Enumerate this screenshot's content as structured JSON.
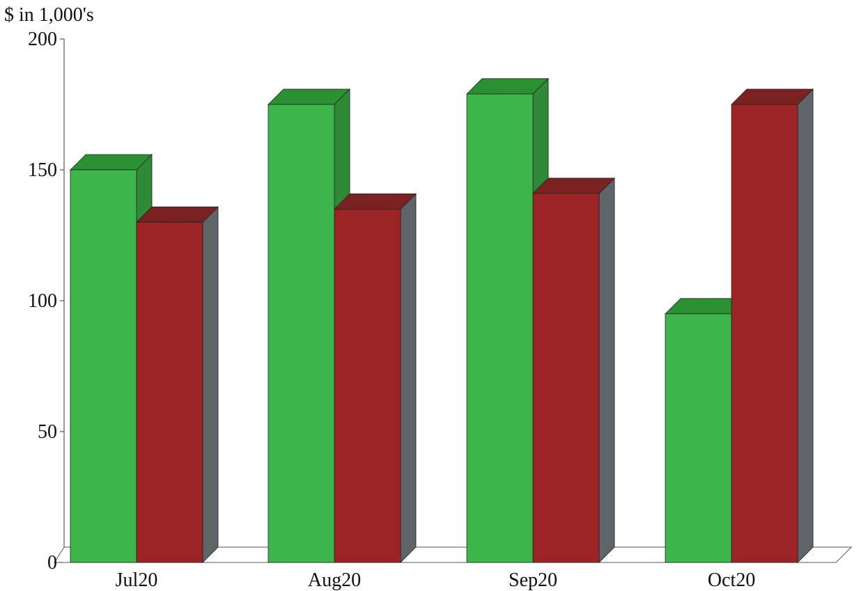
{
  "chart_data": {
    "type": "bar",
    "title": "",
    "ylabel": "$ in 1,000's",
    "xlabel": "",
    "categories": [
      "Jul20",
      "Aug20",
      "Sep20",
      "Oct20"
    ],
    "series": [
      {
        "values": [
          150,
          175,
          179,
          95
        ]
      },
      {
        "values": [
          130,
          135,
          141,
          175
        ]
      }
    ],
    "ylim": [
      0,
      200
    ],
    "yticks": [
      0,
      50,
      100,
      150,
      200
    ],
    "grid": false,
    "legend": "none",
    "colors": {
      "series_front": [
        "#3cb64a",
        "#9c2424"
      ],
      "series_top": [
        "#2a9133",
        "#7a2222"
      ],
      "series_side": [
        "#2e8a36",
        "#5f6469"
      ],
      "axis": "#555555"
    }
  }
}
